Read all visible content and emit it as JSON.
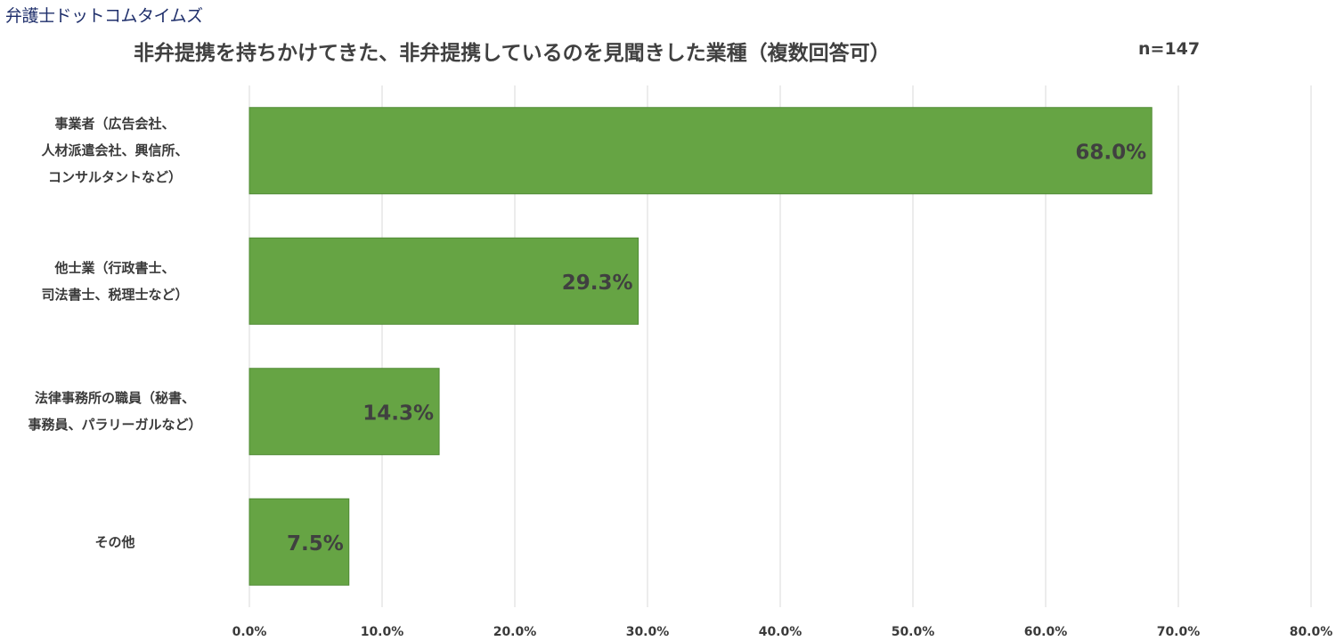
{
  "brand": {
    "logo_text": "弁護士ドットコムタイムズ"
  },
  "chart_data": {
    "type": "bar",
    "orientation": "horizontal",
    "title": "非弁提携を持ちかけてきた、非弁提携しているのを見聞きした業種（複数回答可）",
    "sample_size": "n=147",
    "categories": [
      [
        "事業者（広告会社、",
        "人材派遣会社、興信所、",
        "コンサルタントなど）"
      ],
      [
        "他士業（行政書士、",
        "司法書士、税理士など）"
      ],
      [
        "法律事務所の職員（秘書、",
        "事務員、パラリーガルなど）"
      ],
      [
        "その他"
      ]
    ],
    "values": [
      68.0,
      29.3,
      14.3,
      7.5
    ],
    "value_labels": [
      "68.0%",
      "29.3%",
      "14.3%",
      "7.5%"
    ],
    "xlim": [
      0,
      80
    ],
    "xticks": [
      0,
      10,
      20,
      30,
      40,
      50,
      60,
      70,
      80
    ],
    "xtick_labels": [
      "0.0%",
      "10.0%",
      "20.0%",
      "30.0%",
      "40.0%",
      "50.0%",
      "60.0%",
      "70.0%",
      "80.0%"
    ],
    "grid": "vertical",
    "legend": "none",
    "bar_color": "#66a444",
    "bar_edge_color": "#4f8a33",
    "grid_color": "#d9d9d9",
    "text_color": "#404040"
  }
}
